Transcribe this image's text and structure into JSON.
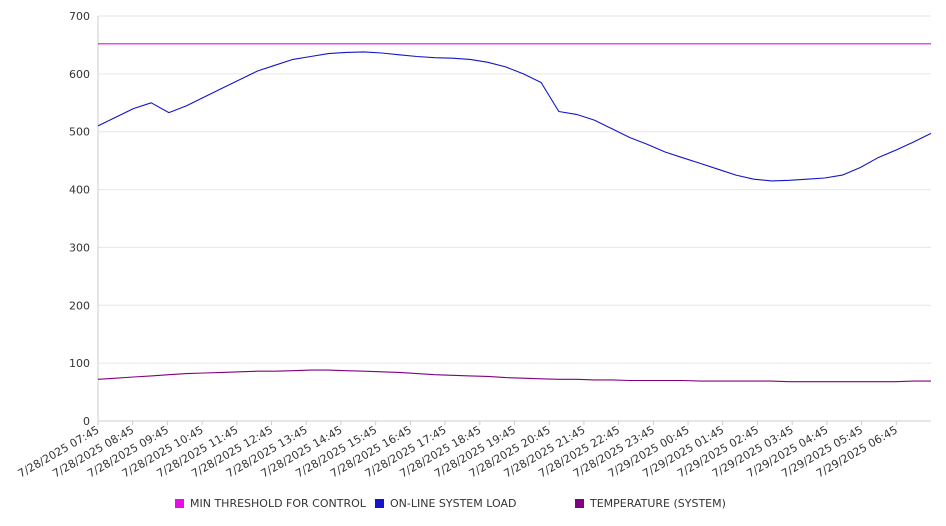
{
  "chart_data": {
    "type": "line",
    "title": "",
    "xlabel": "",
    "ylabel": "",
    "ylim": [
      0,
      700
    ],
    "yticks": [
      0,
      100,
      200,
      300,
      400,
      500,
      600,
      700
    ],
    "grid": true,
    "legend_position": "bottom",
    "x_tick_labels": [
      "7/28/2025 07:45",
      "7/28/2025 08:45",
      "7/28/2025 09:45",
      "7/28/2025 10:45",
      "7/28/2025 11:45",
      "7/28/2025 12:45",
      "7/28/2025 13:45",
      "7/28/2025 14:45",
      "7/28/2025 15:45",
      "7/28/2025 16:45",
      "7/28/2025 17:45",
      "7/28/2025 18:45",
      "7/28/2025 19:45",
      "7/28/2025 20:45",
      "7/28/2025 21:45",
      "7/28/2025 22:45",
      "7/28/2025 23:45",
      "7/29/2025 00:45",
      "7/29/2025 01:45",
      "7/29/2025 02:45",
      "7/29/2025 03:45",
      "7/29/2025 04:45",
      "7/29/2025 05:45",
      "7/29/2025 06:45"
    ],
    "x": [
      "7/28/2025 07:45",
      "7/28/2025 08:15",
      "7/28/2025 08:45",
      "7/28/2025 09:15",
      "7/28/2025 09:45",
      "7/28/2025 10:15",
      "7/28/2025 10:45",
      "7/28/2025 11:15",
      "7/28/2025 11:45",
      "7/28/2025 12:15",
      "7/28/2025 12:45",
      "7/28/2025 13:15",
      "7/28/2025 13:45",
      "7/28/2025 14:15",
      "7/28/2025 14:45",
      "7/28/2025 15:15",
      "7/28/2025 15:45",
      "7/28/2025 16:15",
      "7/28/2025 16:45",
      "7/28/2025 17:15",
      "7/28/2025 17:45",
      "7/28/2025 18:15",
      "7/28/2025 18:45",
      "7/28/2025 19:15",
      "7/28/2025 19:45",
      "7/28/2025 20:15",
      "7/28/2025 20:45",
      "7/28/2025 21:15",
      "7/28/2025 21:45",
      "7/28/2025 22:15",
      "7/28/2025 22:45",
      "7/28/2025 23:15",
      "7/28/2025 23:45",
      "7/29/2025 00:15",
      "7/29/2025 00:45",
      "7/29/2025 01:15",
      "7/29/2025 01:45",
      "7/29/2025 02:15",
      "7/29/2025 02:45",
      "7/29/2025 03:15",
      "7/29/2025 03:45",
      "7/29/2025 04:15",
      "7/29/2025 04:45",
      "7/29/2025 05:15",
      "7/29/2025 05:45",
      "7/29/2025 06:15",
      "7/29/2025 06:45",
      "7/29/2025 07:15"
    ],
    "series": [
      {
        "name": "MIN THRESHOLD FOR CONTROL",
        "color": "#e60de6",
        "values": [
          652,
          652,
          652,
          652,
          652,
          652,
          652,
          652,
          652,
          652,
          652,
          652,
          652,
          652,
          652,
          652,
          652,
          652,
          652,
          652,
          652,
          652,
          652,
          652,
          652,
          652,
          652,
          652,
          652,
          652,
          652,
          652,
          652,
          652,
          652,
          652,
          652,
          652,
          652,
          652,
          652,
          652,
          652,
          652,
          652,
          652,
          652,
          652
        ]
      },
      {
        "name": "ON-LINE SYSTEM LOAD",
        "color": "#1414cc",
        "values": [
          510,
          525,
          540,
          550,
          533,
          545,
          560,
          575,
          590,
          605,
          615,
          625,
          630,
          635,
          637,
          638,
          636,
          633,
          630,
          628,
          627,
          625,
          620,
          612,
          600,
          585,
          535,
          530,
          520,
          505,
          490,
          478,
          465,
          455,
          445,
          435,
          425,
          418,
          415,
          416,
          418,
          420,
          425,
          438,
          455,
          468,
          482,
          497
        ]
      },
      {
        "name": "TEMPERATURE (SYSTEM)",
        "color": "#800080",
        "values": [
          72,
          74,
          76,
          78,
          80,
          82,
          83,
          84,
          85,
          86,
          86,
          87,
          88,
          88,
          87,
          86,
          85,
          84,
          82,
          80,
          79,
          78,
          77,
          75,
          74,
          73,
          72,
          72,
          71,
          71,
          70,
          70,
          70,
          70,
          69,
          69,
          69,
          69,
          69,
          68,
          68,
          68,
          68,
          68,
          68,
          68,
          69,
          69
        ]
      }
    ]
  }
}
